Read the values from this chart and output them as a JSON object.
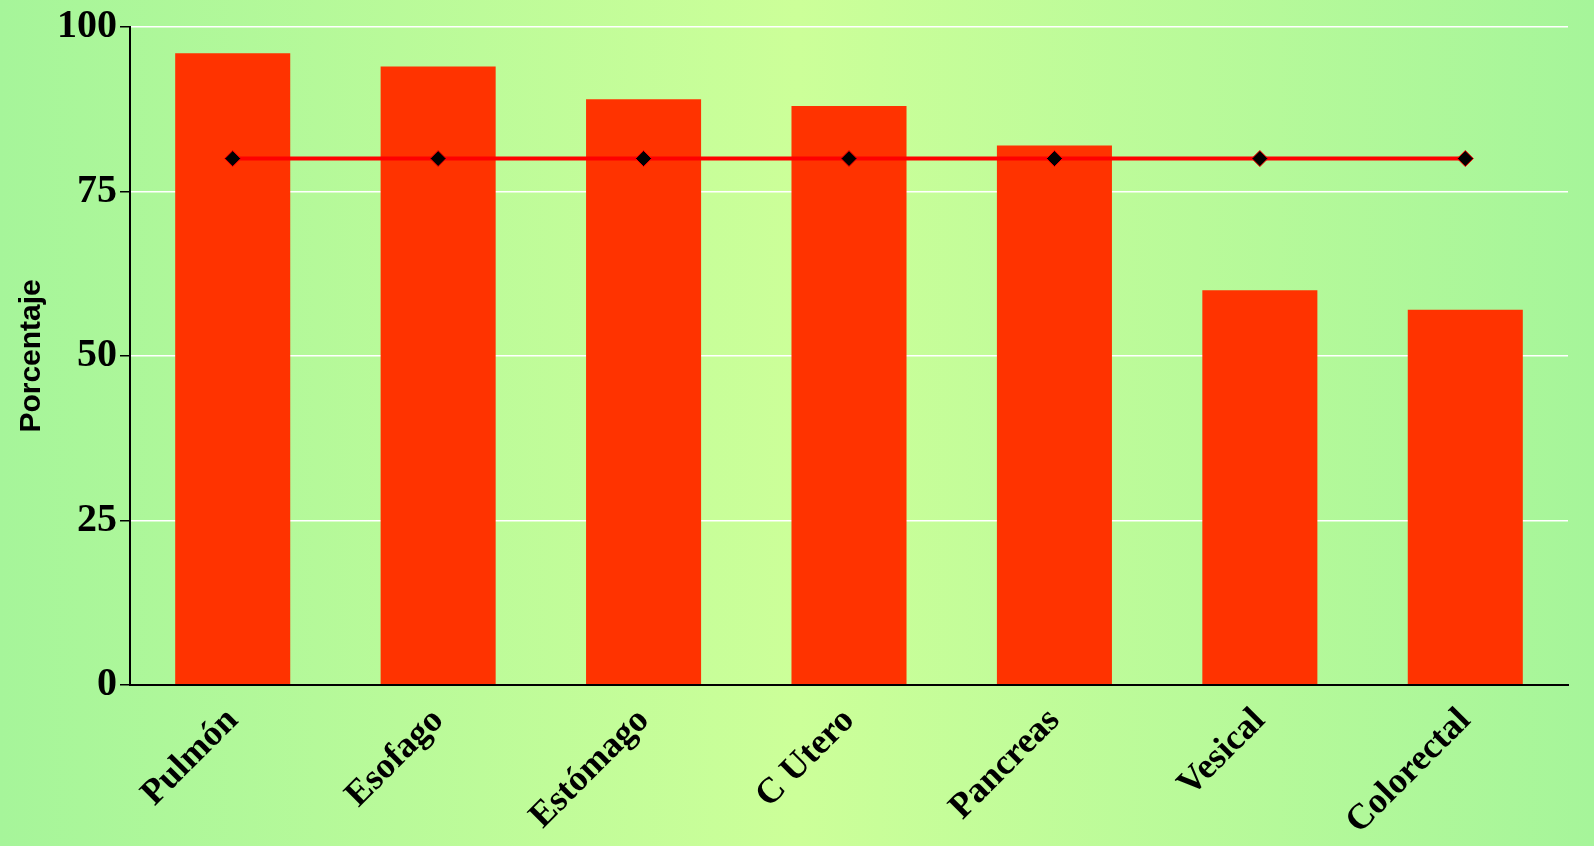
{
  "chart_data": {
    "type": "bar",
    "ylabel": "Porcentaje",
    "categories": [
      "Pulmón",
      "Esofago",
      "Estómago",
      "C Utero",
      "Pancreas",
      "Vesical",
      "Colorectal"
    ],
    "series": [
      {
        "color": "#ff3300",
        "values": [
          96,
          94,
          89,
          88,
          82,
          60,
          57
        ]
      },
      {
        "type": "line",
        "color": "#ff0000",
        "marker": "diamond",
        "values": [
          80,
          80,
          80,
          80,
          80,
          80,
          80
        ]
      }
    ],
    "ylim": [
      0,
      100
    ],
    "yticks": [
      0,
      25,
      50,
      75,
      100
    ],
    "grid": "y",
    "legend": false
  }
}
